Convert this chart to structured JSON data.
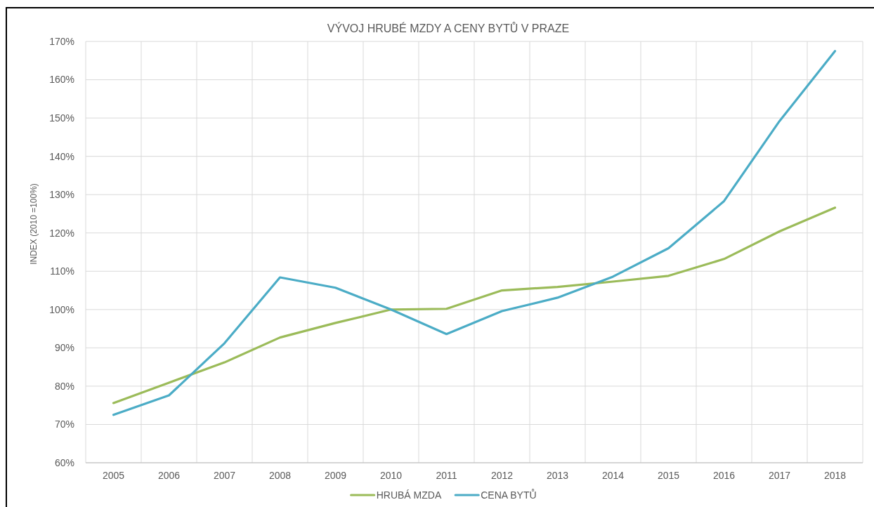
{
  "chart_data": {
    "type": "line",
    "title": "VÝVOJ HRUBÉ MZDY A CENY BYTŮ V PRAZE",
    "ylabel": "INDEX (2010 =100%)",
    "categories": [
      "2005",
      "2006",
      "2007",
      "2008",
      "2009",
      "2010",
      "2011",
      "2012",
      "2013",
      "2014",
      "2015",
      "2016",
      "2017",
      "2018"
    ],
    "series": [
      {
        "name": "HRUBÁ MZDA",
        "color": "#9bbb59",
        "values": [
          75.6,
          80.9,
          86.2,
          92.7,
          96.5,
          100,
          100.2,
          105.0,
          105.9,
          107.3,
          108.8,
          113.2,
          120.4,
          126.6
        ]
      },
      {
        "name": "CENA BYTŮ",
        "color": "#4bacc6",
        "values": [
          72.5,
          77.6,
          91.2,
          108.4,
          105.7,
          100,
          93.6,
          99.6,
          103.1,
          108.6,
          116.0,
          128.3,
          149.2,
          167.5
        ]
      }
    ],
    "ylim": [
      60,
      170
    ],
    "yticks": [
      {
        "value": 60,
        "label": "60%"
      },
      {
        "value": 70,
        "label": "70%"
      },
      {
        "value": 80,
        "label": "80%"
      },
      {
        "value": 90,
        "label": "90%"
      },
      {
        "value": 100,
        "label": "100%"
      },
      {
        "value": 110,
        "label": "110%"
      },
      {
        "value": 120,
        "label": "120%"
      },
      {
        "value": 130,
        "label": "130%"
      },
      {
        "value": 140,
        "label": "140%"
      },
      {
        "value": 150,
        "label": "150%"
      },
      {
        "value": 160,
        "label": "160%"
      },
      {
        "value": 170,
        "label": "170%"
      }
    ],
    "grid": true,
    "legend": "bottom"
  }
}
